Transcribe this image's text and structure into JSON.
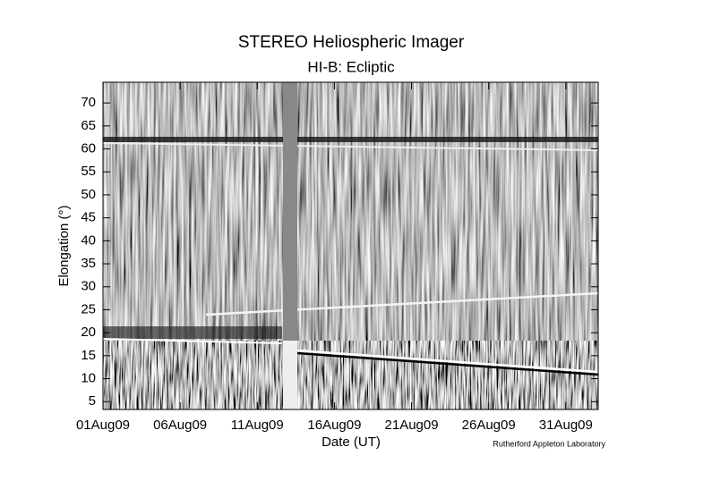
{
  "chart_data": {
    "type": "image",
    "title": "STEREO Heliospheric Imager",
    "subtitle": "HI-B: Ecliptic",
    "xlabel": "Date (UT)",
    "ylabel": "Elongation (°)",
    "credit": "Rutherford Appleton Laboratory",
    "xlim": [
      0,
      32.1
    ],
    "xticks": [
      {
        "value": 0,
        "label": "01Aug09"
      },
      {
        "value": 5,
        "label": "06Aug09"
      },
      {
        "value": 10,
        "label": "11Aug09"
      },
      {
        "value": 15,
        "label": "16Aug09"
      },
      {
        "value": 20,
        "label": "21Aug09"
      },
      {
        "value": 25,
        "label": "26Aug09"
      },
      {
        "value": 30,
        "label": "31Aug09"
      }
    ],
    "ylim": [
      3.3,
      74.5
    ],
    "yticks": [
      5,
      10,
      15,
      20,
      25,
      30,
      35,
      40,
      45,
      50,
      55,
      60,
      65,
      70
    ]
  }
}
